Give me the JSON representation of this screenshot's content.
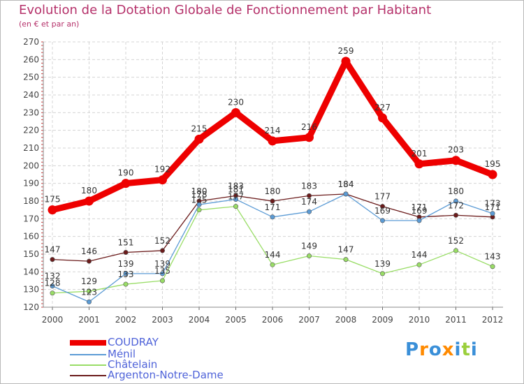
{
  "header": {
    "title": "Evolution de la Dotation Globale de Fonctionnement par Habitant",
    "subtitle": "(en € et par an)"
  },
  "chart_data": {
    "type": "line",
    "x": [
      "2000",
      "2001",
      "2002",
      "2003",
      "2004",
      "2005",
      "2006",
      "2007",
      "2008",
      "2009",
      "2010",
      "2011",
      "2012"
    ],
    "ylim": [
      120,
      270
    ],
    "yticks": [
      120,
      130,
      140,
      150,
      160,
      170,
      180,
      190,
      200,
      210,
      220,
      230,
      240,
      250,
      260,
      270
    ],
    "grid": true,
    "series": [
      {
        "name": "COUDRAY",
        "color": "#ee0000",
        "values": [
          175,
          180,
          190,
          192,
          215,
          230,
          214,
          216,
          259,
          227,
          201,
          203,
          195
        ]
      },
      {
        "name": "Ménil",
        "color": "#5b9bd5",
        "values": [
          132,
          123,
          139,
          139,
          178,
          181,
          171,
          174,
          184,
          169,
          169,
          180,
          173
        ]
      },
      {
        "name": "Châtelain",
        "color": "#99dd66",
        "values": [
          128,
          129,
          133,
          135,
          175,
          177,
          144,
          149,
          147,
          139,
          144,
          152,
          143
        ]
      },
      {
        "name": "Argenton-Notre-Dame",
        "color": "#6b1b1b",
        "values": [
          147,
          146,
          151,
          152,
          180,
          183,
          180,
          183,
          184,
          177,
          171,
          172,
          171
        ]
      }
    ],
    "legend_position": "bottom-left"
  },
  "logo": {
    "text": "Proxiti",
    "colors": [
      "#3a8fd8",
      "#ff8a00",
      "#3a8fd8",
      "#ff8a00",
      "#3a8fd8",
      "#9bcf3c",
      "#3a8fd8"
    ]
  }
}
